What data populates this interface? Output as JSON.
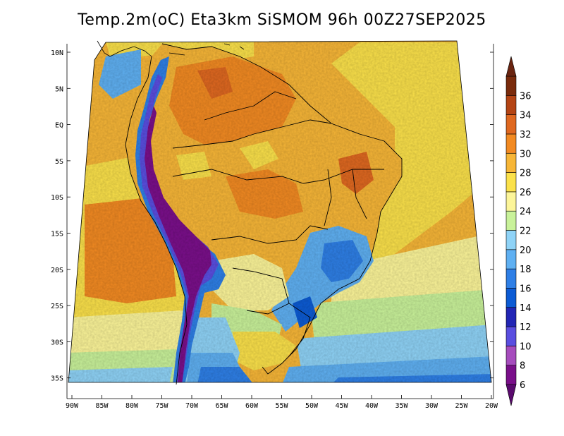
{
  "title": "Temp.2m(oC) Eta3km SiSMOM 96h 00Z27SEP2025",
  "map": {
    "variable": "2 m air temperature",
    "units": "oC",
    "region": "South America / Brazil",
    "lat_labels": [
      "10N",
      "5N",
      "EQ",
      "5S",
      "10S",
      "15S",
      "20S",
      "25S",
      "30S",
      "35S"
    ],
    "lon_labels": [
      "90W",
      "85W",
      "80W",
      "75W",
      "70W",
      "65W",
      "60W",
      "55W",
      "50W",
      "45W",
      "40W",
      "35W",
      "30W",
      "25W",
      "20W"
    ]
  },
  "colorbar": {
    "labels": [
      "6",
      "8",
      "10",
      "12",
      "14",
      "16",
      "18",
      "20",
      "22",
      "24",
      "26",
      "28",
      "30",
      "32",
      "34",
      "36"
    ],
    "colors": [
      "#7a0f8a",
      "#a64cbd",
      "#5a4ee0",
      "#2226b5",
      "#0c5bd4",
      "#2e7fe6",
      "#5fb0f2",
      "#8fd3f7",
      "#c9f29a",
      "#fcf599",
      "#fbe14a",
      "#f7b637",
      "#f28a22",
      "#df6820",
      "#b44414",
      "#7a2b0c"
    ],
    "low_color": "#5a0a6e",
    "high_color": "#6a2410"
  }
}
